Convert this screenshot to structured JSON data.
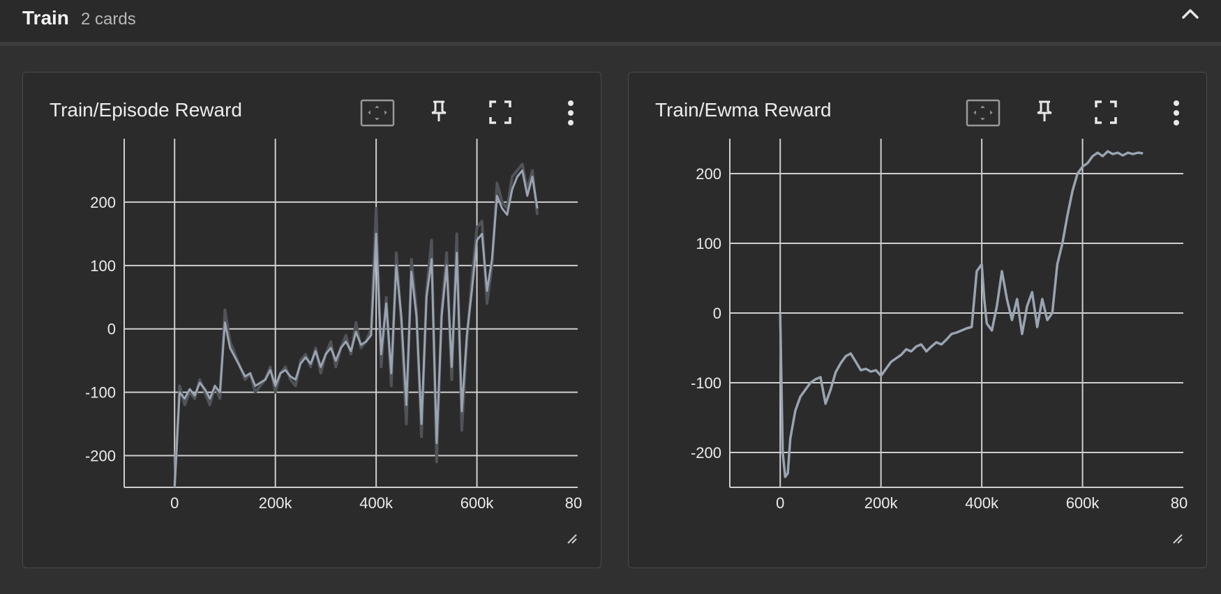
{
  "section": {
    "title": "Train",
    "count_label": "2 cards"
  },
  "colors": {
    "background": "#303030",
    "card_background": "#2b2b2b",
    "grid": "#cfcfcf",
    "raw_series": "#505358",
    "smoothed_series": "#9aa4b2",
    "text": "#ececec"
  },
  "cards": [
    {
      "title": "Train/Episode Reward",
      "icons": [
        "fit-domain-icon",
        "pin-icon",
        "fullscreen-icon",
        "more-vert-icon"
      ]
    },
    {
      "title": "Train/Ewma Reward",
      "icons": [
        "fit-domain-icon",
        "pin-icon",
        "fullscreen-icon",
        "more-vert-icon"
      ]
    }
  ],
  "chart_data": [
    {
      "type": "line",
      "title": "Train/Episode Reward",
      "xlim": [
        -100000,
        800000
      ],
      "ylim": [
        -250,
        300
      ],
      "x_ticks": [
        "0",
        "200k",
        "400k",
        "600k",
        "80"
      ],
      "x_tick_values": [
        0,
        200000,
        400000,
        600000,
        800000
      ],
      "y_ticks": [
        "-200",
        "-100",
        "0",
        "100",
        "200"
      ],
      "y_tick_values": [
        -200,
        -100,
        0,
        100,
        200
      ],
      "grid": true,
      "series": [
        {
          "x": [
            0,
            10000,
            20000,
            30000,
            40000,
            50000,
            60000,
            70000,
            80000,
            90000,
            100000,
            110000,
            120000,
            130000,
            140000,
            150000,
            160000,
            170000,
            180000,
            190000,
            200000,
            210000,
            220000,
            230000,
            240000,
            250000,
            260000,
            270000,
            280000,
            290000,
            300000,
            310000,
            320000,
            330000,
            340000,
            350000,
            360000,
            370000,
            380000,
            390000,
            400000,
            410000,
            420000,
            430000,
            440000,
            450000,
            460000,
            470000,
            480000,
            490000,
            500000,
            510000,
            520000,
            530000,
            540000,
            550000,
            560000,
            570000,
            580000,
            590000,
            600000,
            610000,
            620000,
            630000,
            640000,
            650000,
            660000,
            670000,
            680000,
            690000,
            700000,
            710000,
            720000
          ],
          "values": [
            -250,
            -90,
            -120,
            -100,
            -110,
            -80,
            -100,
            -120,
            -90,
            -110,
            30,
            -20,
            -40,
            -60,
            -80,
            -70,
            -100,
            -90,
            -80,
            -60,
            -100,
            -70,
            -60,
            -80,
            -90,
            -50,
            -40,
            -60,
            -30,
            -70,
            -40,
            -20,
            -60,
            -30,
            -10,
            -40,
            10,
            -30,
            -20,
            0,
            190,
            -60,
            50,
            -90,
            120,
            10,
            -150,
            110,
            30,
            -170,
            60,
            140,
            -210,
            30,
            120,
            -80,
            150,
            -160,
            -20,
            80,
            160,
            170,
            40,
            100,
            230,
            200,
            190,
            240,
            250,
            260,
            220,
            250,
            180
          ]
        },
        {
          "x": [
            0,
            10000,
            20000,
            30000,
            40000,
            50000,
            60000,
            70000,
            80000,
            90000,
            100000,
            110000,
            120000,
            130000,
            140000,
            150000,
            160000,
            170000,
            180000,
            190000,
            200000,
            210000,
            220000,
            230000,
            240000,
            250000,
            260000,
            270000,
            280000,
            290000,
            300000,
            310000,
            320000,
            330000,
            340000,
            350000,
            360000,
            370000,
            380000,
            390000,
            400000,
            410000,
            420000,
            430000,
            440000,
            450000,
            460000,
            470000,
            480000,
            490000,
            500000,
            510000,
            520000,
            530000,
            540000,
            550000,
            560000,
            570000,
            580000,
            590000,
            600000,
            610000,
            620000,
            630000,
            640000,
            650000,
            660000,
            670000,
            680000,
            690000,
            700000,
            710000,
            720000
          ],
          "values": [
            -250,
            -100,
            -110,
            -95,
            -105,
            -85,
            -95,
            -110,
            -90,
            -100,
            10,
            -30,
            -45,
            -60,
            -75,
            -70,
            -90,
            -85,
            -80,
            -65,
            -90,
            -70,
            -65,
            -75,
            -80,
            -55,
            -45,
            -55,
            -35,
            -60,
            -40,
            -30,
            -50,
            -30,
            -20,
            -35,
            -5,
            -25,
            -20,
            -10,
            150,
            -40,
            40,
            -70,
            100,
            20,
            -120,
            90,
            20,
            -150,
            50,
            110,
            -180,
            20,
            100,
            -60,
            120,
            -130,
            -10,
            60,
            140,
            150,
            60,
            110,
            210,
            190,
            180,
            220,
            240,
            250,
            210,
            240,
            190
          ]
        }
      ]
    },
    {
      "type": "line",
      "title": "Train/Ewma Reward",
      "xlim": [
        -100000,
        800000
      ],
      "ylim": [
        -250,
        250
      ],
      "x_ticks": [
        "0",
        "200k",
        "400k",
        "600k",
        "80"
      ],
      "x_tick_values": [
        0,
        200000,
        400000,
        600000,
        800000
      ],
      "y_ticks": [
        "-200",
        "-100",
        "0",
        "100",
        "200"
      ],
      "y_tick_values": [
        -200,
        -100,
        0,
        100,
        200
      ],
      "grid": true,
      "series": [
        {
          "x": [
            0,
            5000,
            10000,
            15000,
            20000,
            30000,
            40000,
            50000,
            60000,
            70000,
            80000,
            90000,
            100000,
            110000,
            120000,
            130000,
            140000,
            150000,
            160000,
            170000,
            180000,
            190000,
            200000,
            210000,
            220000,
            230000,
            240000,
            250000,
            260000,
            270000,
            280000,
            290000,
            300000,
            310000,
            320000,
            330000,
            340000,
            350000,
            360000,
            370000,
            380000,
            390000,
            400000,
            405000,
            410000,
            420000,
            430000,
            440000,
            450000,
            460000,
            470000,
            480000,
            490000,
            500000,
            510000,
            520000,
            530000,
            540000,
            550000,
            560000,
            570000,
            580000,
            590000,
            600000,
            610000,
            620000,
            630000,
            640000,
            650000,
            660000,
            670000,
            680000,
            690000,
            700000,
            710000,
            720000
          ],
          "values": [
            0,
            -200,
            -235,
            -230,
            -180,
            -140,
            -120,
            -110,
            -100,
            -95,
            -92,
            -130,
            -110,
            -85,
            -72,
            -62,
            -58,
            -70,
            -82,
            -80,
            -84,
            -82,
            -90,
            -80,
            -70,
            -65,
            -60,
            -52,
            -55,
            -48,
            -45,
            -55,
            -48,
            -42,
            -45,
            -38,
            -30,
            -28,
            -25,
            -22,
            -20,
            60,
            70,
            20,
            -15,
            -25,
            10,
            60,
            20,
            -10,
            20,
            -30,
            10,
            30,
            -20,
            20,
            -10,
            0,
            70,
            100,
            140,
            175,
            200,
            210,
            215,
            225,
            230,
            225,
            232,
            228,
            230,
            226,
            230,
            228,
            230,
            229
          ]
        }
      ]
    }
  ]
}
